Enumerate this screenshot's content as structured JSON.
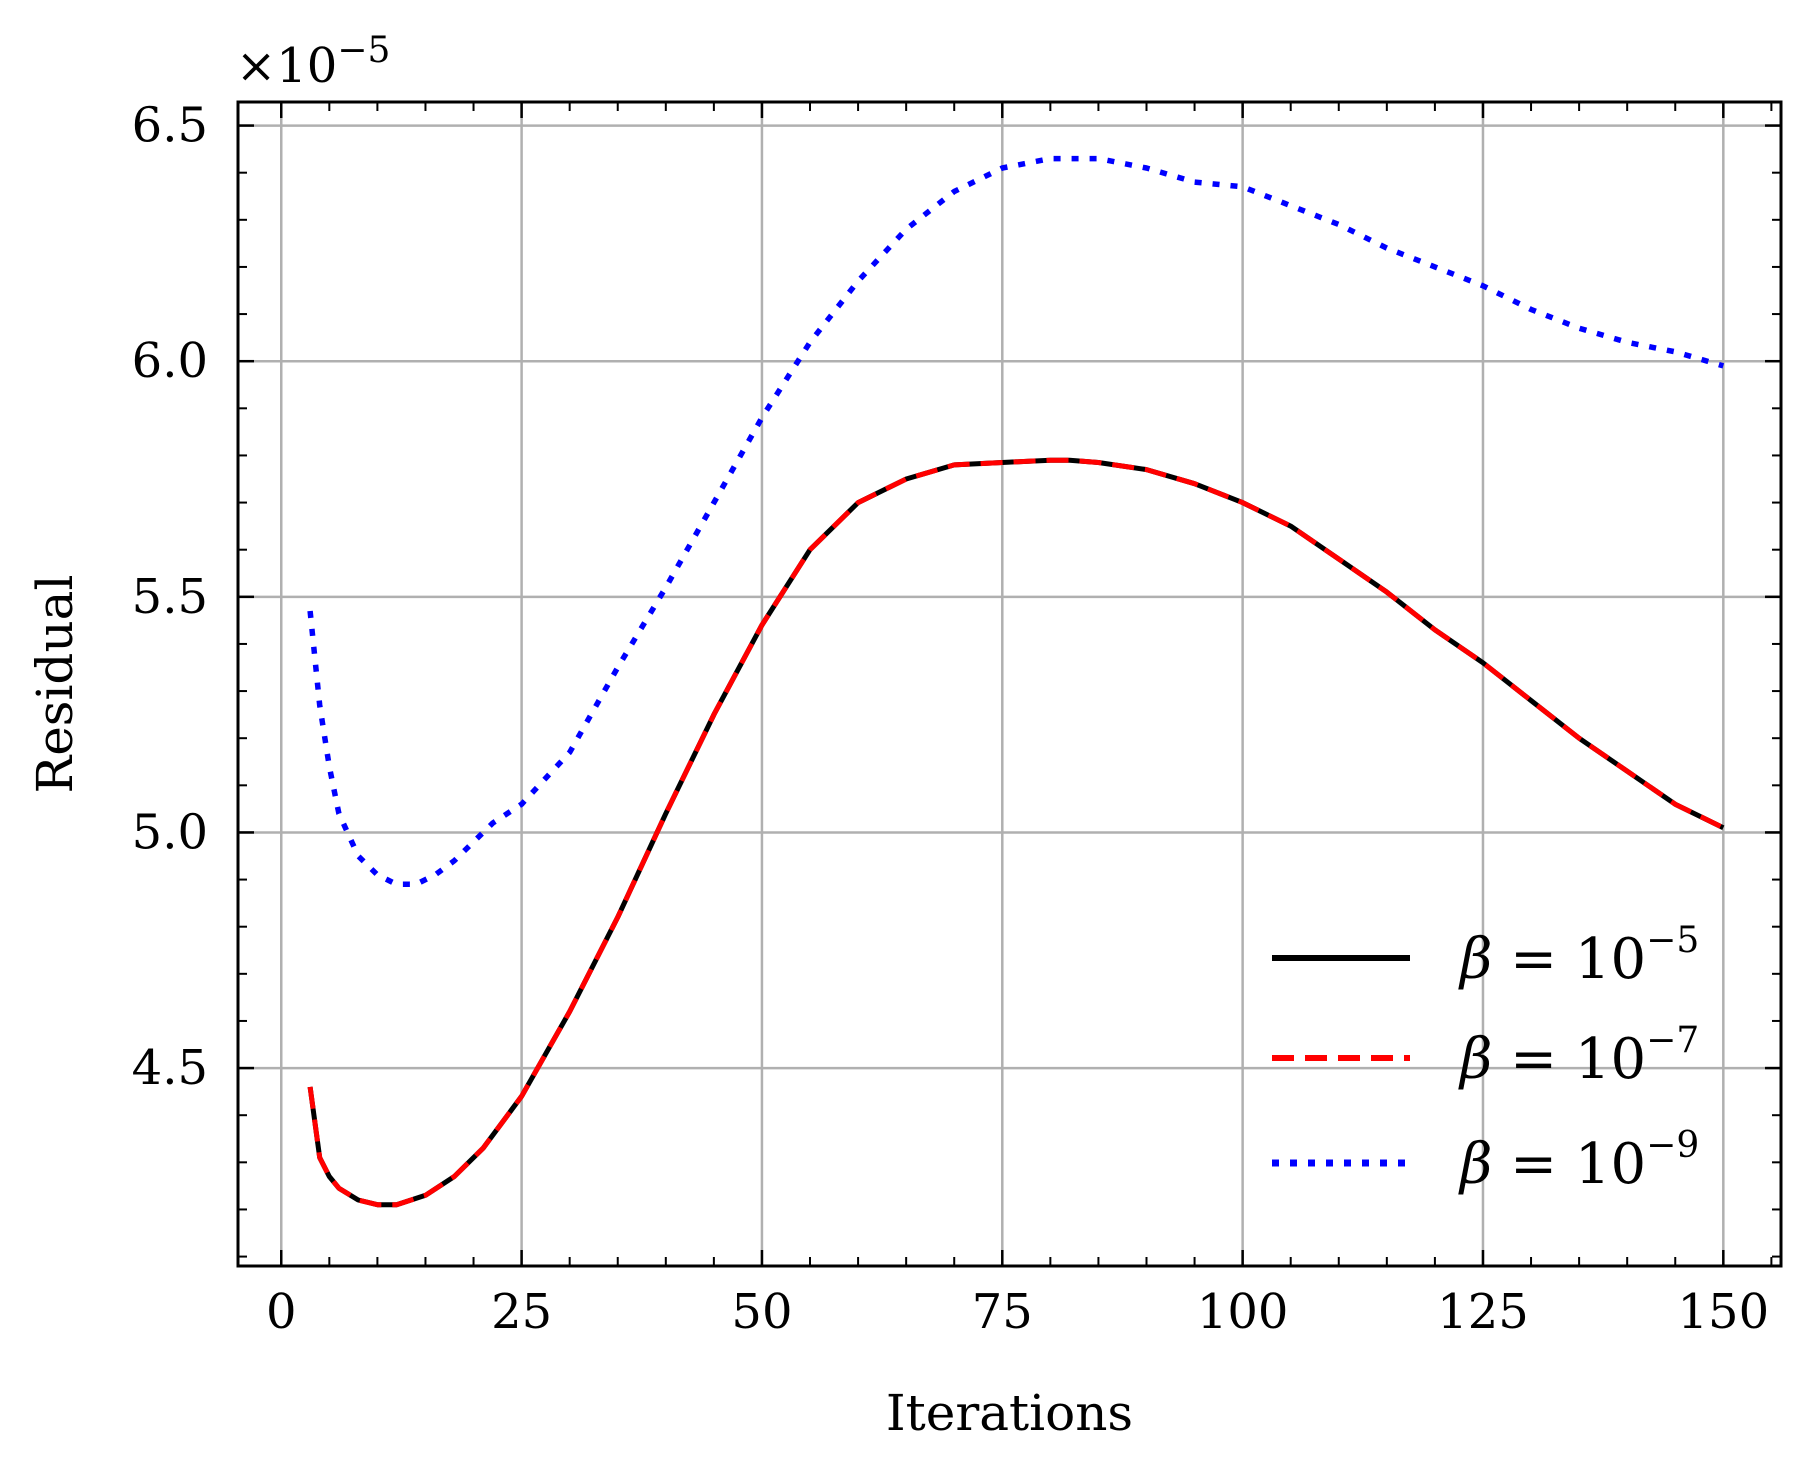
{
  "chart_data": {
    "type": "line",
    "xlabel": "Iterations",
    "ylabel": "Residual",
    "offset_text": "×10",
    "offset_exponent": "−5",
    "xlim": [
      -4.5,
      156
    ],
    "ylim": [
      4.08,
      6.55
    ],
    "xticks": [
      0,
      25,
      50,
      75,
      100,
      125,
      150
    ],
    "xtick_labels": [
      "0",
      "25",
      "50",
      "75",
      "100",
      "125",
      "150"
    ],
    "yticks": [
      4.5,
      5.0,
      5.5,
      6.0,
      6.5
    ],
    "ytick_labels": [
      "4.5",
      "5.0",
      "5.5",
      "6.0",
      "6.5"
    ],
    "grid": true,
    "legend_position": "lower-right",
    "series": [
      {
        "name": "β = 10−5",
        "legend_symbol": "β",
        "legend_mid": " = 10",
        "legend_exp": "−5",
        "color": "#000000",
        "style": "solid",
        "x": [
          3,
          4,
          5,
          6,
          8,
          10,
          12,
          15,
          18,
          21,
          25,
          30,
          35,
          40,
          45,
          50,
          55,
          60,
          65,
          70,
          75,
          80,
          82,
          85,
          90,
          95,
          100,
          105,
          110,
          115,
          120,
          125,
          130,
          135,
          140,
          145,
          150
        ],
        "y": [
          4.46,
          4.31,
          4.27,
          4.245,
          4.22,
          4.21,
          4.21,
          4.23,
          4.27,
          4.33,
          4.44,
          4.62,
          4.82,
          5.04,
          5.25,
          5.44,
          5.6,
          5.7,
          5.75,
          5.78,
          5.785,
          5.79,
          5.79,
          5.785,
          5.77,
          5.74,
          5.7,
          5.65,
          5.58,
          5.51,
          5.43,
          5.36,
          5.28,
          5.2,
          5.13,
          5.06,
          5.01
        ]
      },
      {
        "name": "β = 10−7",
        "legend_symbol": "β",
        "legend_mid": " = 10",
        "legend_exp": "−7",
        "color": "#ff0000",
        "style": "dashed",
        "x": [
          3,
          4,
          5,
          6,
          8,
          10,
          12,
          15,
          18,
          21,
          25,
          30,
          35,
          40,
          45,
          50,
          55,
          60,
          65,
          70,
          75,
          80,
          82,
          85,
          90,
          95,
          100,
          105,
          110,
          115,
          120,
          125,
          130,
          135,
          140,
          145,
          150
        ],
        "y": [
          4.46,
          4.31,
          4.27,
          4.245,
          4.22,
          4.21,
          4.21,
          4.23,
          4.27,
          4.33,
          4.44,
          4.62,
          4.82,
          5.04,
          5.25,
          5.44,
          5.6,
          5.7,
          5.75,
          5.78,
          5.785,
          5.79,
          5.79,
          5.785,
          5.77,
          5.74,
          5.7,
          5.65,
          5.58,
          5.51,
          5.43,
          5.36,
          5.28,
          5.2,
          5.13,
          5.06,
          5.01
        ]
      },
      {
        "name": "β = 10−9",
        "legend_symbol": "β",
        "legend_mid": " = 10",
        "legend_exp": "−9",
        "color": "#0000ff",
        "style": "dotted",
        "x": [
          3,
          4,
          5,
          6,
          8,
          10,
          12,
          14,
          16,
          18,
          20,
          22,
          25,
          30,
          35,
          40,
          45,
          50,
          55,
          60,
          65,
          70,
          75,
          80,
          85,
          90,
          95,
          100,
          105,
          110,
          115,
          120,
          125,
          130,
          135,
          140,
          145,
          150
        ],
        "y": [
          5.47,
          5.27,
          5.14,
          5.04,
          4.95,
          4.91,
          4.89,
          4.89,
          4.91,
          4.94,
          4.98,
          5.02,
          5.06,
          5.17,
          5.35,
          5.52,
          5.7,
          5.88,
          6.04,
          6.17,
          6.28,
          6.36,
          6.41,
          6.43,
          6.43,
          6.41,
          6.38,
          6.37,
          6.33,
          6.29,
          6.24,
          6.2,
          6.16,
          6.11,
          6.07,
          6.04,
          6.02,
          5.99
        ]
      }
    ]
  }
}
